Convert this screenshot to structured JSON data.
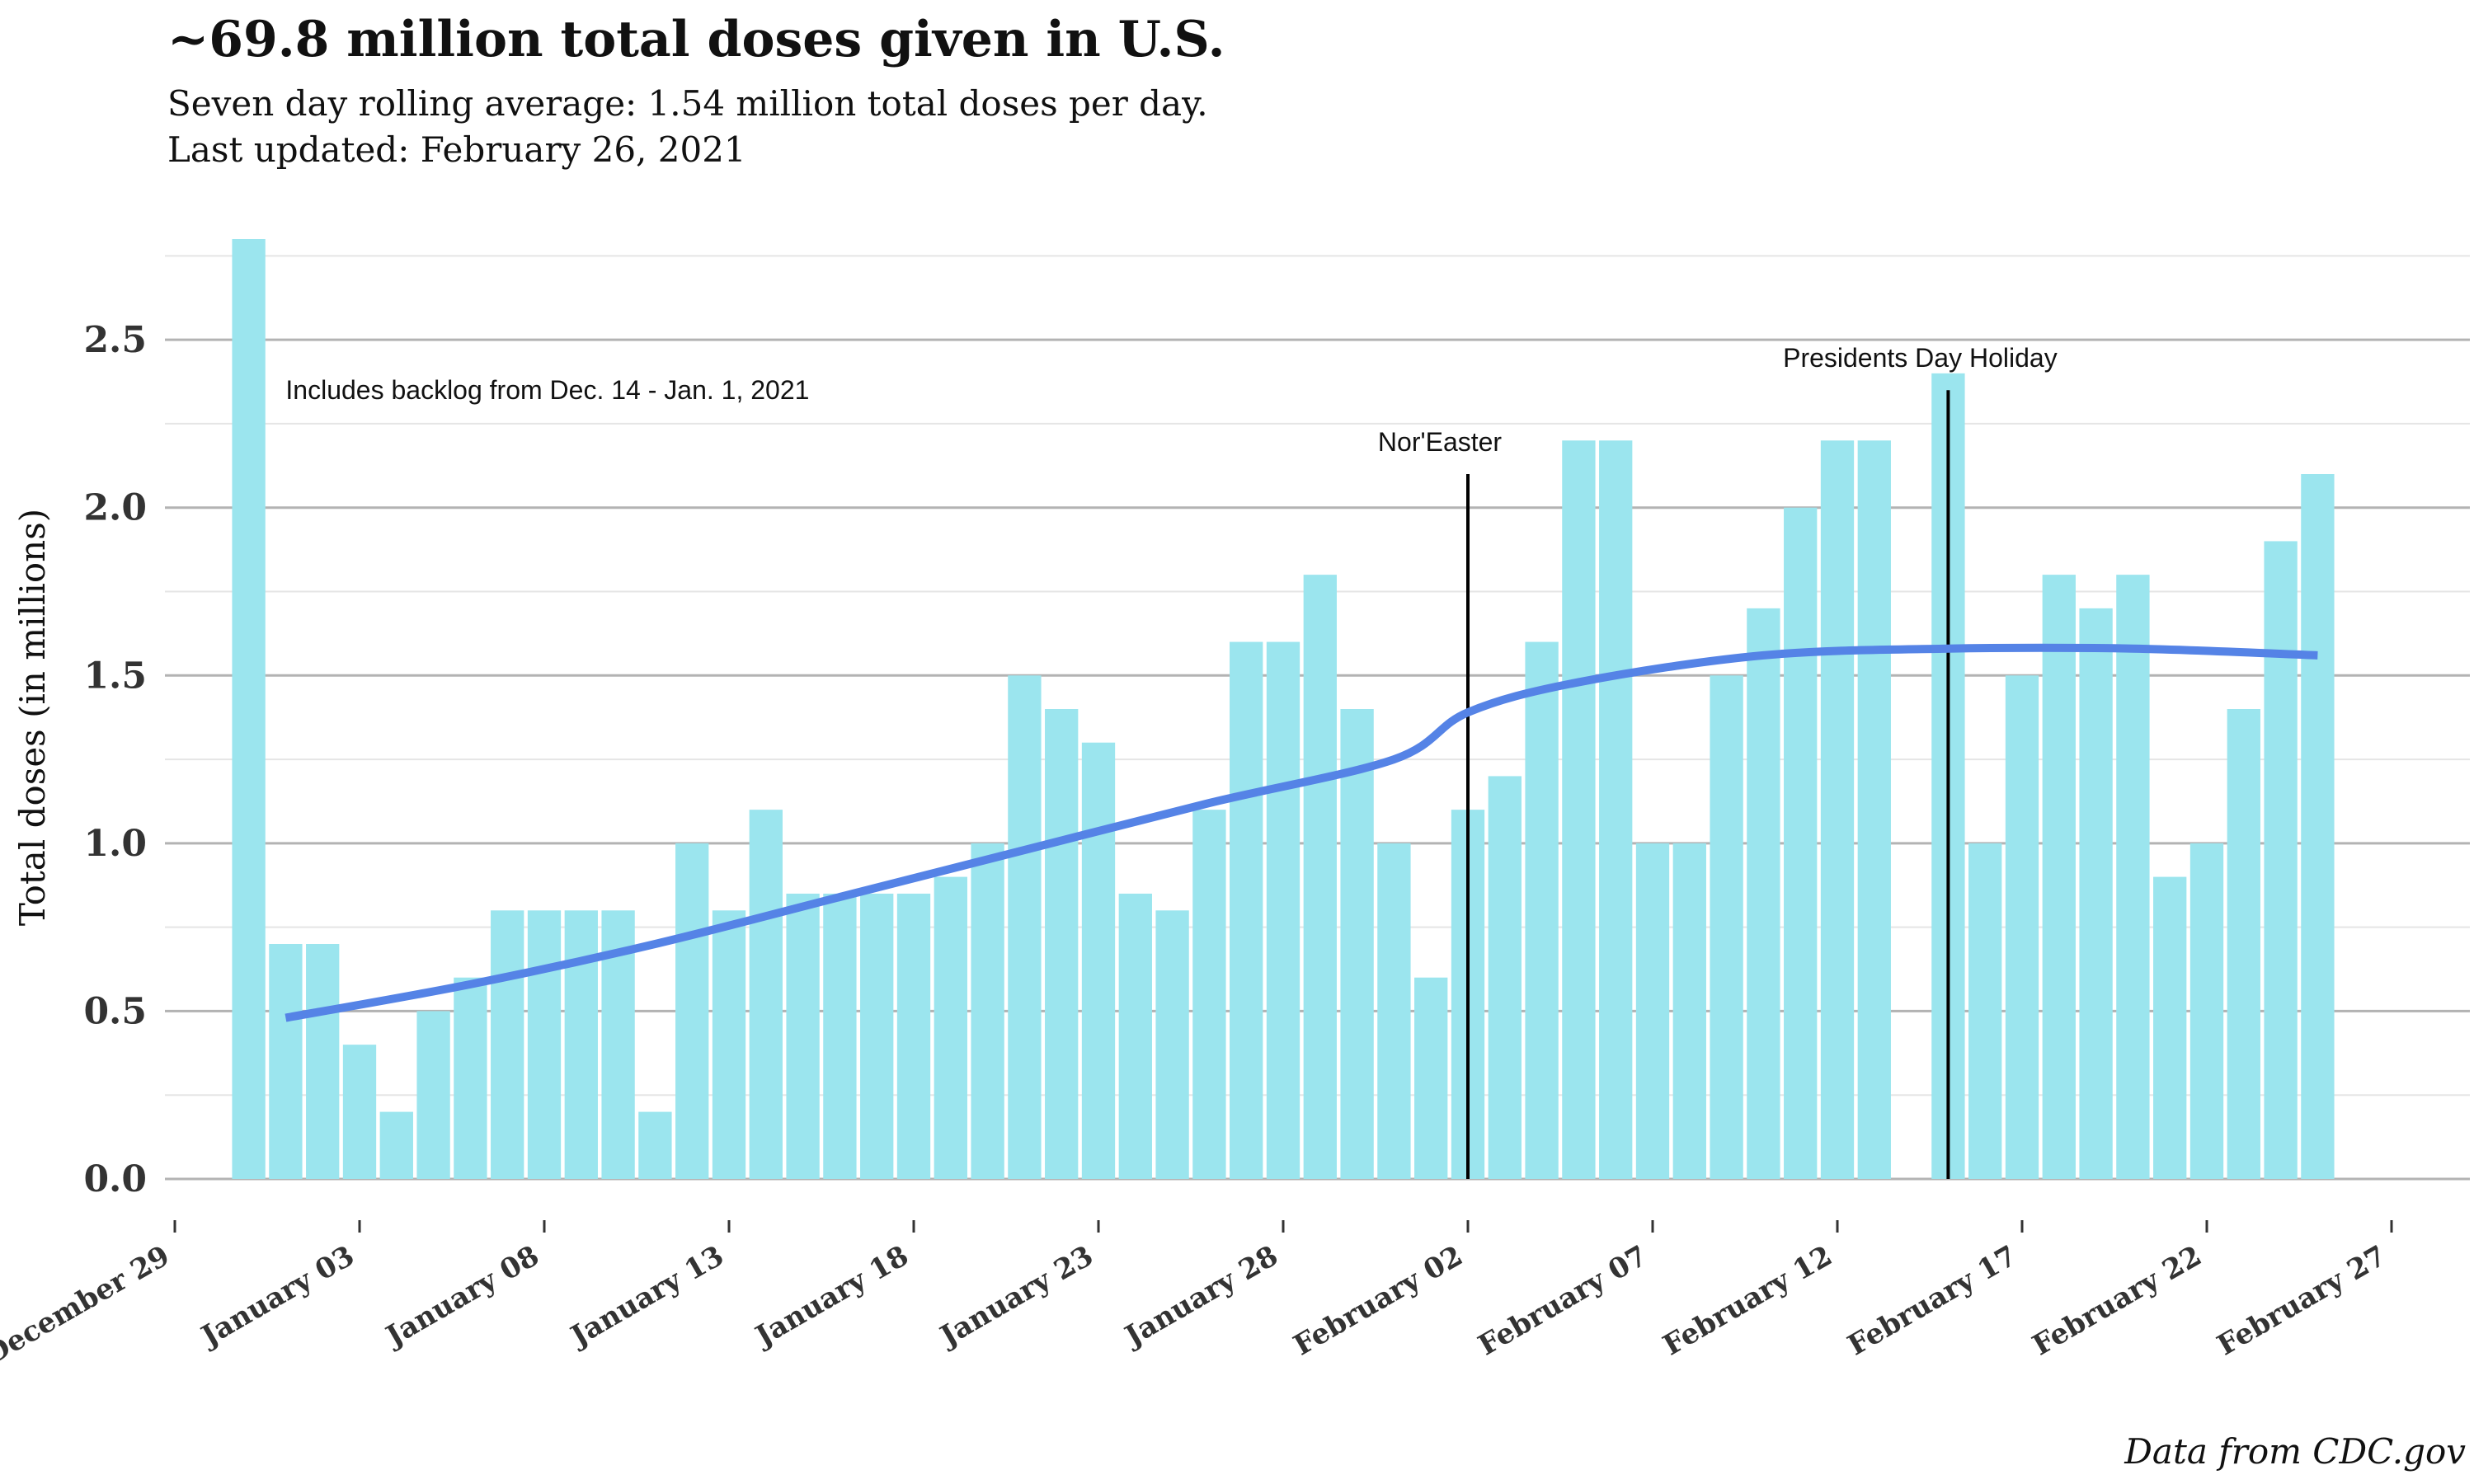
{
  "chart_data": {
    "type": "bar",
    "title": "~69.8 million total doses given in U.S.",
    "subtitle_lines": [
      "Seven day rolling average: 1.54 million total doses per day.",
      "Last updated: February 26, 2021"
    ],
    "ylabel": "Total doses (in millions)",
    "xlabel": "",
    "caption": "Data from CDC.gov",
    "ylim": [
      0,
      2.8
    ],
    "y_ticks": [
      "0.0",
      "0.5",
      "1.0",
      "1.5",
      "2.0",
      "2.5"
    ],
    "x_ticks": [
      {
        "date": "2020-12-29",
        "label": "December 29"
      },
      {
        "date": "2021-01-03",
        "label": "January 03"
      },
      {
        "date": "2021-01-08",
        "label": "January 08"
      },
      {
        "date": "2021-01-13",
        "label": "January 13"
      },
      {
        "date": "2021-01-18",
        "label": "January 18"
      },
      {
        "date": "2021-01-23",
        "label": "January 23"
      },
      {
        "date": "2021-01-28",
        "label": "January 28"
      },
      {
        "date": "2021-02-02",
        "label": "February 02"
      },
      {
        "date": "2021-02-07",
        "label": "February 07"
      },
      {
        "date": "2021-02-12",
        "label": "February 12"
      },
      {
        "date": "2021-02-17",
        "label": "February 17"
      },
      {
        "date": "2021-02-22",
        "label": "February 22"
      },
      {
        "date": "2021-02-27",
        "label": "February 27"
      }
    ],
    "x_range": [
      "2020-12-29",
      "2021-02-27"
    ],
    "dates": [
      "2020-12-31",
      "2021-01-01",
      "2021-01-02",
      "2021-01-03",
      "2021-01-04",
      "2021-01-05",
      "2021-01-06",
      "2021-01-07",
      "2021-01-08",
      "2021-01-09",
      "2021-01-10",
      "2021-01-11",
      "2021-01-12",
      "2021-01-13",
      "2021-01-14",
      "2021-01-15",
      "2021-01-16",
      "2021-01-17",
      "2021-01-18",
      "2021-01-19",
      "2021-01-20",
      "2021-01-21",
      "2021-01-22",
      "2021-01-23",
      "2021-01-24",
      "2021-01-25",
      "2021-01-26",
      "2021-01-27",
      "2021-01-28",
      "2021-01-29",
      "2021-01-30",
      "2021-01-31",
      "2021-02-01",
      "2021-02-02",
      "2021-02-03",
      "2021-02-04",
      "2021-02-05",
      "2021-02-06",
      "2021-02-07",
      "2021-02-08",
      "2021-02-09",
      "2021-02-10",
      "2021-02-11",
      "2021-02-12",
      "2021-02-13",
      "2021-02-14",
      "2021-02-15",
      "2021-02-16",
      "2021-02-17",
      "2021-02-18",
      "2021-02-19",
      "2021-02-20",
      "2021-02-21",
      "2021-02-22",
      "2021-02-23",
      "2021-02-24",
      "2021-02-25"
    ],
    "values": [
      2.8,
      0.7,
      0.7,
      0.4,
      0.2,
      0.5,
      0.6,
      0.8,
      0.8,
      0.8,
      0.8,
      0.2,
      1.0,
      0.8,
      1.1,
      0.85,
      0.85,
      0.85,
      0.85,
      0.9,
      1.0,
      1.5,
      1.4,
      1.3,
      0.85,
      0.8,
      1.1,
      1.6,
      1.6,
      1.8,
      1.4,
      1.0,
      0.6,
      1.1,
      1.2,
      1.6,
      2.2,
      2.2,
      1.0,
      1.0,
      1.5,
      1.7,
      2.0,
      2.2,
      2.2,
      0,
      2.4,
      1.0,
      1.5,
      1.8,
      1.7,
      1.8,
      0.9,
      1.0,
      1.4,
      1.9,
      2.1
    ],
    "trend_line": {
      "dates": [
        "2021-01-01",
        "2021-01-06",
        "2021-01-11",
        "2021-01-16",
        "2021-01-21",
        "2021-01-26",
        "2021-01-31",
        "2021-02-02",
        "2021-02-05",
        "2021-02-10",
        "2021-02-15",
        "2021-02-20",
        "2021-02-25"
      ],
      "values": [
        0.48,
        0.58,
        0.7,
        0.84,
        0.98,
        1.12,
        1.25,
        1.39,
        1.48,
        1.56,
        1.58,
        1.58,
        1.56
      ]
    },
    "annotations": [
      {
        "text": "Includes backlog from Dec. 14 - Jan. 1, 2021",
        "date": "2021-01-01",
        "y": 2.35
      },
      {
        "text": "Nor'Easter",
        "date": "2021-02-02",
        "y_top": 2.1
      },
      {
        "text": "Presidents Day Holiday",
        "date": "2021-02-15",
        "y_top": 2.35
      }
    ],
    "colors": {
      "bar": "#9be5ee",
      "trend": "#5583e6",
      "major_grid": "#b3b3b3",
      "minor_grid": "#e5e5e5",
      "event_line": "#000000"
    }
  }
}
